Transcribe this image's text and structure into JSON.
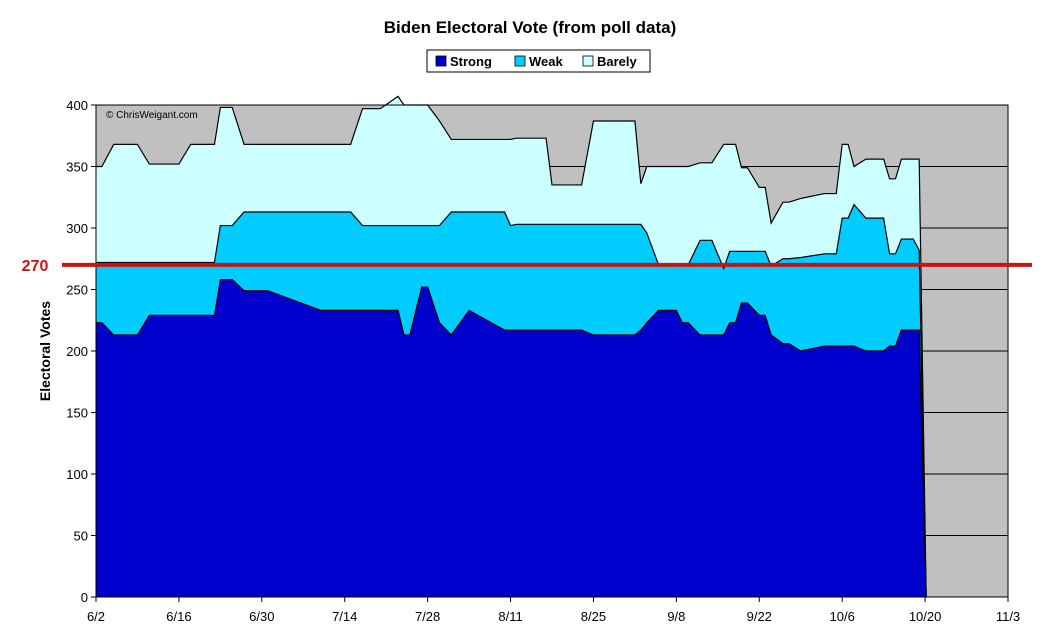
{
  "chart_data": {
    "type": "area",
    "title": "Biden Electoral Vote (from poll data)",
    "ylabel": "Electoral Votes",
    "xlabel": "",
    "ylim": [
      0,
      400
    ],
    "yticks": [
      0,
      50,
      100,
      150,
      200,
      250,
      300,
      350,
      400
    ],
    "x_range": [
      "6/2",
      "11/3"
    ],
    "x_tick_labels": [
      "6/2",
      "6/16",
      "6/30",
      "7/14",
      "7/28",
      "8/11",
      "8/25",
      "9/8",
      "9/22",
      "10/6",
      "10/20",
      "11/3"
    ],
    "stacked": true,
    "legend": {
      "position": "top-center",
      "entries": [
        "Strong",
        "Weak",
        "Barely"
      ]
    },
    "credit": "© ChrisWeigant.com",
    "reference_line": {
      "value": 270,
      "label": "270",
      "color": "#c81414"
    },
    "colors": {
      "Strong": "#0000cc",
      "Weak": "#00ccff",
      "Barely": "#ccffff",
      "plot_bg": "#c0c0c0"
    },
    "grid": {
      "horizontal": true,
      "vertical": false
    },
    "x": [
      "6/2",
      "6/3",
      "6/5",
      "6/9",
      "6/11",
      "6/14",
      "6/16",
      "6/18",
      "6/22",
      "6/23",
      "6/25",
      "6/27",
      "7/1",
      "7/10",
      "7/12",
      "7/15",
      "7/17",
      "7/20",
      "7/23",
      "7/24",
      "7/25",
      "7/27",
      "7/28",
      "7/30",
      "8/1",
      "8/4",
      "8/10",
      "8/11",
      "8/12",
      "8/17",
      "8/18",
      "8/23",
      "8/25",
      "9/1",
      "9/2",
      "9/3",
      "9/5",
      "9/7",
      "9/8",
      "9/9",
      "9/10",
      "9/12",
      "9/14",
      "9/16",
      "9/17",
      "9/18",
      "9/19",
      "9/20",
      "9/22",
      "9/23",
      "9/24",
      "9/26",
      "9/27",
      "9/29",
      "10/3",
      "10/4",
      "10/5",
      "10/6",
      "10/7",
      "10/8",
      "10/10",
      "10/12",
      "10/13",
      "10/14",
      "10/15",
      "10/16",
      "10/18",
      "10/19"
    ],
    "series": [
      {
        "name": "Strong",
        "values": [
          223,
          223,
          213,
          213,
          229,
          229,
          229,
          229,
          229,
          258,
          258,
          249,
          249,
          233,
          233,
          233,
          233,
          233,
          233,
          213,
          213,
          252,
          252,
          223,
          213,
          233,
          217,
          217,
          217,
          217,
          217,
          217,
          213,
          213,
          217,
          223,
          233,
          233,
          233,
          223,
          223,
          213,
          213,
          213,
          223,
          223,
          239,
          239,
          229,
          229,
          213,
          206,
          206,
          200,
          204,
          204,
          204,
          204,
          204,
          204,
          200,
          200,
          200,
          204,
          204,
          217,
          217,
          217
        ]
      },
      {
        "name": "Weak",
        "values": [
          49,
          49,
          59,
          59,
          43,
          43,
          43,
          43,
          43,
          44,
          44,
          64,
          64,
          80,
          80,
          80,
          69,
          69,
          69,
          89,
          89,
          50,
          50,
          79,
          100,
          80,
          96,
          85,
          86,
          86,
          86,
          86,
          90,
          90,
          86,
          73,
          37,
          37,
          37,
          47,
          47,
          77,
          77,
          54,
          58,
          58,
          42,
          42,
          52,
          52,
          56,
          69,
          69,
          76,
          75,
          75,
          75,
          104,
          104,
          115,
          108,
          108,
          108,
          75,
          75,
          74,
          74,
          65
        ]
      },
      {
        "name": "Barely",
        "values": [
          78,
          78,
          96,
          96,
          80,
          80,
          80,
          96,
          96,
          96,
          96,
          55,
          55,
          55,
          55,
          55,
          95,
          95,
          105,
          98,
          98,
          98,
          98,
          85,
          59,
          59,
          59,
          70,
          70,
          70,
          32,
          32,
          84,
          84,
          33,
          54,
          80,
          80,
          80,
          80,
          80,
          63,
          63,
          101,
          87,
          87,
          68,
          68,
          52,
          52,
          35,
          46,
          46,
          48,
          49,
          49,
          49,
          60,
          60,
          31,
          48,
          48,
          48,
          61,
          61,
          65,
          65,
          74
        ]
      }
    ]
  }
}
